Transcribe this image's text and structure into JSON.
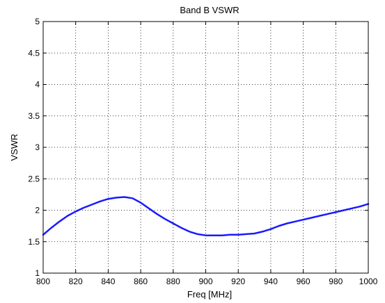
{
  "chart_data": {
    "type": "line",
    "title": "Band B VSWR",
    "xlabel": "Freq [MHz]",
    "ylabel": "VSWR",
    "xlim": [
      800,
      1000
    ],
    "ylim": [
      1,
      5
    ],
    "grid": true,
    "x_ticks": [
      "800",
      "820",
      "840",
      "860",
      "880",
      "900",
      "920",
      "940",
      "960",
      "980",
      "1000"
    ],
    "y_ticks": [
      "1",
      "1.5",
      "2",
      "2.5",
      "3",
      "3.5",
      "4",
      "4.5",
      "5"
    ],
    "series": [
      {
        "color": "#1a1aff",
        "x": [
          800,
          805,
          810,
          815,
          820,
          825,
          830,
          835,
          840,
          845,
          850,
          855,
          860,
          865,
          870,
          875,
          880,
          885,
          890,
          895,
          900,
          905,
          910,
          915,
          920,
          925,
          930,
          935,
          940,
          945,
          950,
          955,
          960,
          965,
          970,
          975,
          980,
          985,
          990,
          995,
          1000
        ],
        "y": [
          1.61,
          1.72,
          1.82,
          1.91,
          1.98,
          2.04,
          2.09,
          2.14,
          2.18,
          2.2,
          2.21,
          2.19,
          2.12,
          2.03,
          1.94,
          1.86,
          1.79,
          1.72,
          1.66,
          1.62,
          1.6,
          1.6,
          1.6,
          1.61,
          1.61,
          1.62,
          1.63,
          1.66,
          1.7,
          1.75,
          1.79,
          1.82,
          1.85,
          1.88,
          1.91,
          1.94,
          1.97,
          2.0,
          2.03,
          2.06,
          2.1
        ]
      }
    ]
  }
}
